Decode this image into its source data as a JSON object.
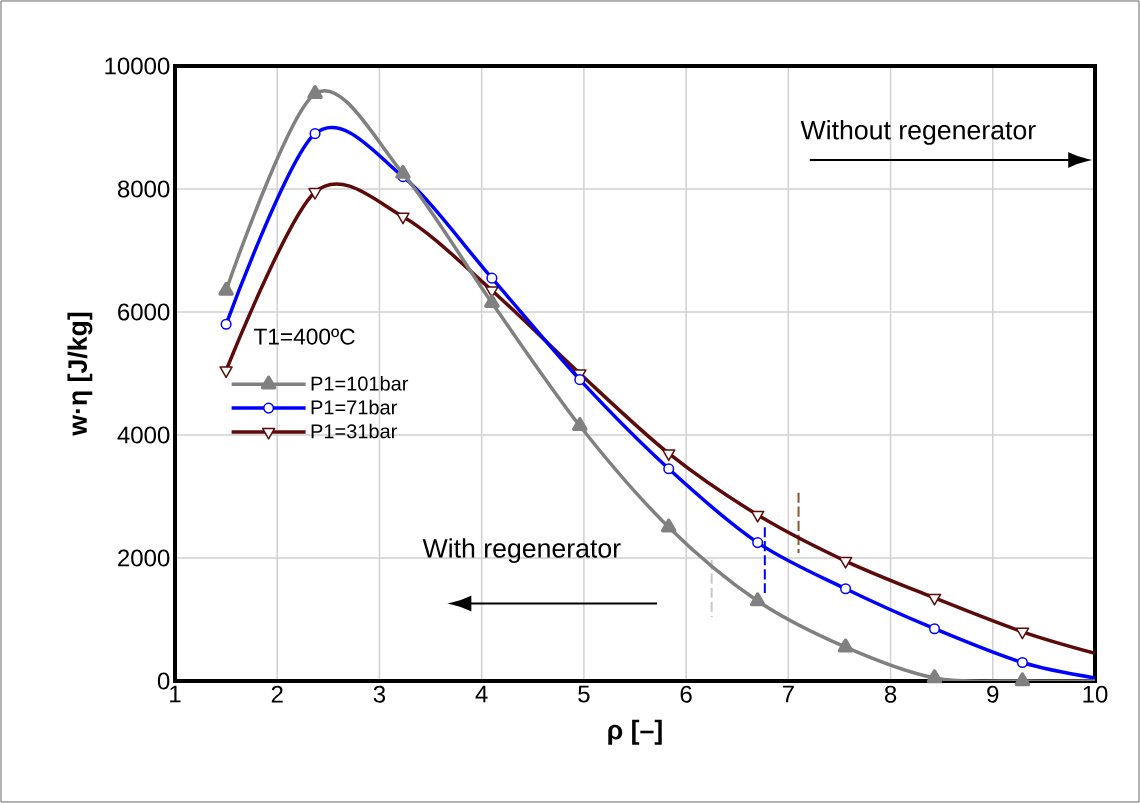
{
  "chart_data": {
    "type": "line",
    "xlabel": "ρ [–]",
    "ylabel": "w·η [J/kg]",
    "x": [
      1.5,
      2.37,
      3.23,
      4.1,
      4.96,
      5.83,
      6.7,
      7.56,
      8.43,
      9.29,
      10
    ],
    "series": [
      {
        "name": "P1=101bar",
        "color": "#808080",
        "marker": "triangle",
        "values": [
          6350,
          9550,
          8250,
          6150,
          4150,
          2500,
          1300,
          550,
          50,
          0,
          0
        ]
      },
      {
        "name": "P1=71bar",
        "color": "#0000ff",
        "marker": "circle",
        "values": [
          5800,
          8900,
          8200,
          6550,
          4900,
          3450,
          2250,
          1500,
          850,
          300,
          50
        ]
      },
      {
        "name": "P1=31bar",
        "color": "#5c0a0a",
        "marker": "triangle-down",
        "values": [
          5050,
          7950,
          7550,
          6350,
          5000,
          3700,
          2700,
          1950,
          1350,
          800,
          450
        ]
      },
      {
        "type": "line",
        "color": "#c8c8c8",
        "line_style": "dashed",
        "marker": "none",
        "x": [
          6.25,
          6.25
        ],
        "values": [
          1970,
          1040
        ]
      },
      {
        "type": "line",
        "color": "#0000ff",
        "line_style": "dashed",
        "marker": "none",
        "x": [
          6.77,
          6.77
        ],
        "values": [
          2500,
          1430
        ]
      },
      {
        "type": "line",
        "color": "#8b5a2b",
        "line_style": "dashed",
        "marker": "none",
        "x": [
          7.1,
          7.1
        ],
        "values": [
          3060,
          2080
        ]
      }
    ],
    "annotations": [
      "T1=400ºC",
      "Without regenerator",
      "With regenerator"
    ],
    "xlim": [
      1,
      10
    ],
    "ylim": [
      0,
      10000
    ],
    "xticks": [
      1,
      2,
      3,
      4,
      5,
      6,
      7,
      8,
      9,
      10
    ],
    "yticks": [
      0,
      2000,
      4000,
      6000,
      8000,
      10000
    ],
    "grid": true,
    "legend": "left",
    "line_style": "solid"
  }
}
